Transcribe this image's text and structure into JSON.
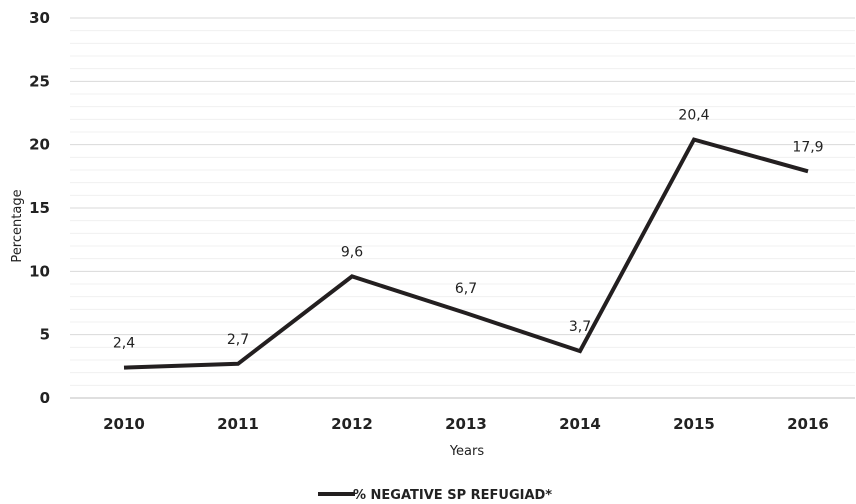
{
  "chart_data": {
    "type": "line",
    "categories": [
      "2010",
      "2011",
      "2012",
      "2013",
      "2014",
      "2015",
      "2016"
    ],
    "series": [
      {
        "name": "% NEGATIVE SP REFUGIAD*",
        "values": [
          2.4,
          2.7,
          9.6,
          6.7,
          3.7,
          20.4,
          17.9
        ],
        "labels": [
          "2,4",
          "2,7",
          "9,6",
          "6,7",
          "3,7",
          "20,4",
          "17,9"
        ],
        "color": "#231f20"
      }
    ],
    "xlabel": "Years",
    "ylabel": "Percentage",
    "ylim": [
      0,
      30
    ],
    "yticks": [
      "0",
      "5",
      "10",
      "15",
      "20",
      "25",
      "30"
    ],
    "grid": true,
    "legend": "bottom-center"
  }
}
